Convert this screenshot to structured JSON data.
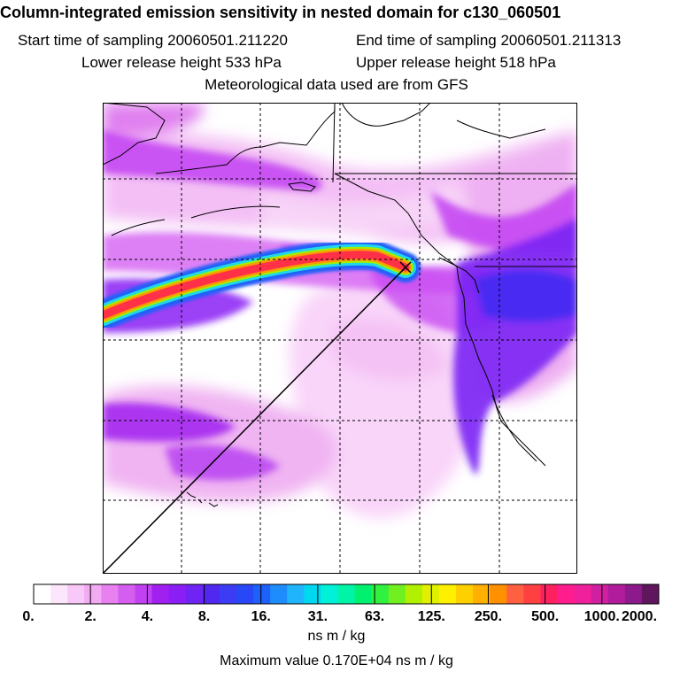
{
  "header": {
    "title": "Column-integrated emission sensitivity in nested domain for c130_060501",
    "start_label": "Start time of sampling 20060501.211220",
    "end_label": "End time of sampling 20060501.211313",
    "lower_label": "Lower release height  533 hPa",
    "upper_label": "Upper release height  518 hPa",
    "met_label": "Meteorological data used are from GFS"
  },
  "chart_data": {
    "type": "heatmap",
    "title": "Column-integrated emission sensitivity in nested domain for c130_060501",
    "start_time": "20060501.211220",
    "end_time": "20060501.211313",
    "lower_release_height_hPa": 533,
    "upper_release_height_hPa": 518,
    "met_source": "GFS",
    "colorbar": {
      "tick_labels": [
        "0.",
        "2.",
        "4.",
        "8.",
        "16.",
        "31.",
        "63.",
        "125.",
        "250.",
        "500.",
        "1000.",
        "2000."
      ],
      "tick_values": [
        0,
        2,
        4,
        8,
        16,
        31,
        63,
        125,
        250,
        500,
        1000,
        2000
      ],
      "colors": [
        "#ffffff",
        "#fce6fc",
        "#f8c8f8",
        "#f2aaf2",
        "#e880f0",
        "#d45ef0",
        "#c040f2",
        "#a020f0",
        "#8a1ef4",
        "#7024f4",
        "#5028f0",
        "#3c3cf4",
        "#2848f8",
        "#1e60fa",
        "#1e8cfc",
        "#20b4fc",
        "#00d8f0",
        "#00f0d8",
        "#00f4a8",
        "#00f070",
        "#30f040",
        "#70f020",
        "#b0f000",
        "#e0f000",
        "#fff000",
        "#ffd000",
        "#ffb000",
        "#ff9000",
        "#ff6040",
        "#ff4040",
        "#ff2060",
        "#ff1c8c",
        "#f0209c",
        "#d020a0",
        "#b01c9c",
        "#8c1a8c",
        "#60165c"
      ],
      "units": "ns m / kg"
    },
    "max_value_label": "Maximum value  0.170E+04 ns m / kg",
    "max_value": 1700
  }
}
